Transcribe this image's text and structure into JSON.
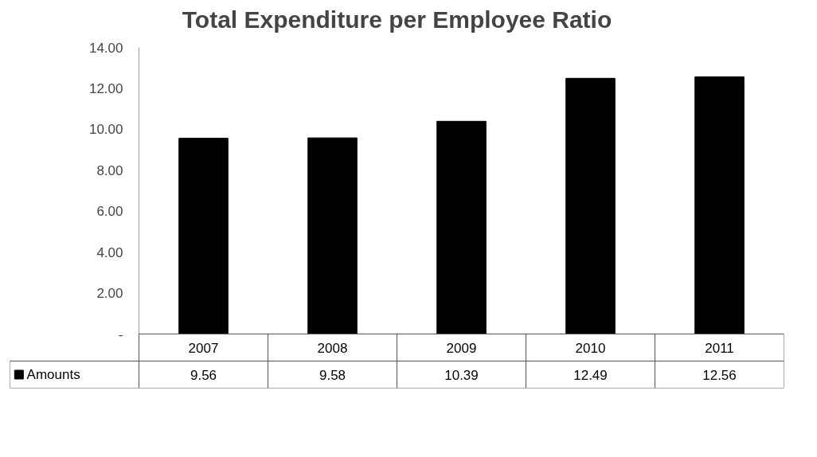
{
  "chart_data": {
    "type": "bar",
    "title": "Total Expenditure per Employee Ratio",
    "categories": [
      "2007",
      "2008",
      "2009",
      "2010",
      "2011"
    ],
    "series": [
      {
        "name": "Amounts",
        "color": "#000000",
        "values": [
          9.56,
          9.58,
          10.39,
          12.49,
          12.56
        ]
      }
    ],
    "ylim": [
      0,
      14
    ],
    "yticks": [
      {
        "value": 0,
        "label": "-"
      },
      {
        "value": 2,
        "label": "2.00"
      },
      {
        "value": 4,
        "label": "4.00"
      },
      {
        "value": 6,
        "label": "6.00"
      },
      {
        "value": 8,
        "label": "8.00"
      },
      {
        "value": 10,
        "label": "10.00"
      },
      {
        "value": 12,
        "label": "12.00"
      },
      {
        "value": 14,
        "label": "14.00"
      }
    ],
    "grid": false,
    "legend": "bottom left",
    "data_labels": true
  }
}
